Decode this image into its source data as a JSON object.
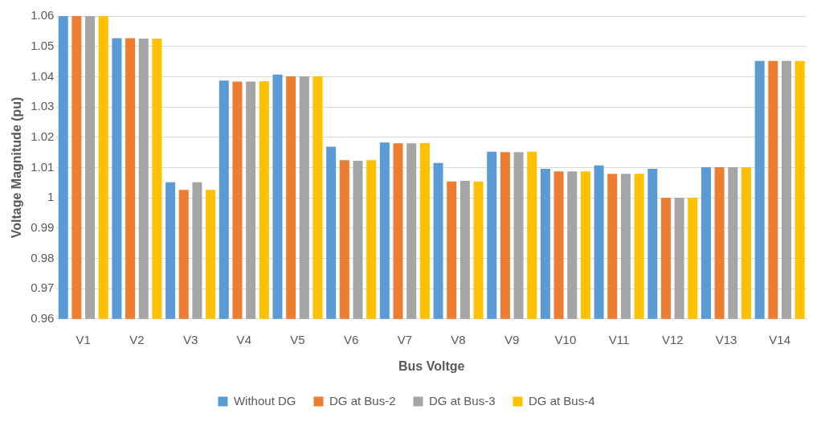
{
  "chart_data": {
    "type": "bar",
    "xlabel": "Bus Voltge",
    "ylabel": "Voltage Magnitude (pu)",
    "categories": [
      "V1",
      "V2",
      "V3",
      "V4",
      "V5",
      "V6",
      "V7",
      "V8",
      "V9",
      "V10",
      "V11",
      "V12",
      "V13",
      "V14"
    ],
    "series": [
      {
        "name": "Without DG",
        "color": "#5b9bd5",
        "values": [
          1.06,
          1.0527,
          1.0051,
          1.0387,
          1.0407,
          1.0169,
          1.0183,
          1.0115,
          1.0152,
          1.0096,
          1.0107,
          1.0096,
          1.0101,
          1.0452
        ]
      },
      {
        "name": "DG at Bus-2",
        "color": "#ed7d31",
        "values": [
          1.06,
          1.0527,
          1.0026,
          1.0384,
          1.0401,
          1.0124,
          1.018,
          1.0054,
          1.0151,
          1.0087,
          1.0079,
          1.0,
          1.0101,
          1.0452
        ]
      },
      {
        "name": "DG at Bus-3",
        "color": "#a5a5a5",
        "values": [
          1.06,
          1.0526,
          1.0051,
          1.0384,
          1.0401,
          1.0122,
          1.018,
          1.0056,
          1.0151,
          1.0087,
          1.0079,
          1.0,
          1.0101,
          1.0452
        ]
      },
      {
        "name": "DG at Bus-4",
        "color": "#ffc000",
        "values": [
          1.06,
          1.0526,
          1.0026,
          1.0385,
          1.0401,
          1.0124,
          1.0181,
          1.0054,
          1.0152,
          1.0087,
          1.0079,
          1.0,
          1.0101,
          1.0452
        ]
      }
    ],
    "ylim": [
      0.96,
      1.06
    ],
    "yticks": [
      0.96,
      0.97,
      0.98,
      0.99,
      1,
      1.01,
      1.02,
      1.03,
      1.04,
      1.05,
      1.06
    ],
    "grid": "y",
    "legend": "bottom"
  }
}
